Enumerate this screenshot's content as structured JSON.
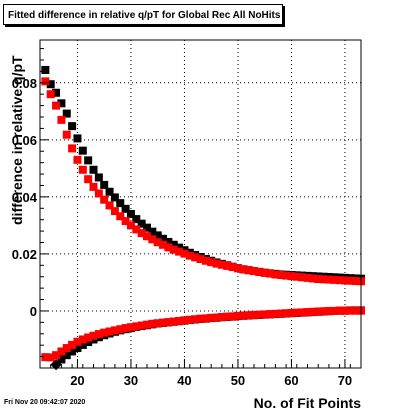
{
  "chart_title": "Fitted difference in relative q/pT for Global Rec All NoHits",
  "timestamp": "Fri Nov 20 09:42:07 2020",
  "chart_data": {
    "type": "scatter",
    "title": "Fitted difference in relative q/pT for Global Rec All NoHits",
    "xlabel": "No. of Fit Points",
    "ylabel": "difference in relative q/pT",
    "xlim": [
      13,
      73
    ],
    "ylim": [
      -0.02,
      0.095
    ],
    "x_ticks": [
      20,
      30,
      40,
      50,
      60,
      70
    ],
    "y_ticks": [
      0,
      0.02,
      0.04,
      0.06,
      0.08
    ],
    "y_tick_labels": [
      "0",
      "0.02",
      "0.04",
      "0.06",
      "0.08"
    ],
    "grid": true,
    "series": [
      {
        "color": "#000000",
        "x": [
          14,
          15,
          16,
          17,
          18,
          19,
          20,
          21,
          22,
          23,
          24,
          25,
          26,
          27,
          28,
          29,
          30,
          31,
          32,
          33,
          34,
          35,
          36,
          37,
          38,
          39,
          40,
          41,
          42,
          43,
          44,
          45,
          46,
          47,
          48,
          49,
          50,
          51,
          52,
          53,
          54,
          55,
          56,
          57,
          58,
          59,
          60,
          61,
          62,
          63,
          64,
          65,
          66,
          67,
          68,
          69,
          70,
          71,
          72,
          73
        ],
        "y": [
          0.0845,
          0.0795,
          0.0765,
          0.0728,
          0.0692,
          0.0648,
          0.0605,
          0.0562,
          0.0528,
          0.0495,
          0.0468,
          0.0442,
          0.0418,
          0.0398,
          0.0378,
          0.0358,
          0.034,
          0.0322,
          0.0306,
          0.0292,
          0.0278,
          0.0265,
          0.0253,
          0.0242,
          0.0232,
          0.0222,
          0.0213,
          0.0204,
          0.0196,
          0.0189,
          0.0182,
          0.0176,
          0.017,
          0.0165,
          0.016,
          0.0155,
          0.015,
          0.0146,
          0.0143,
          0.014,
          0.0137,
          0.0134,
          0.0132,
          0.013,
          0.0128,
          0.0127,
          0.0126,
          0.0125,
          0.0124,
          0.0123,
          0.0122,
          0.0121,
          0.012,
          0.0119,
          0.0118,
          0.0117,
          0.0116,
          0.0115,
          0.0114,
          0.0113
        ]
      },
      {
        "color": "#ff0000",
        "x": [
          14,
          15,
          16,
          17,
          18,
          19,
          20,
          21,
          22,
          23,
          24,
          25,
          26,
          27,
          28,
          29,
          30,
          31,
          32,
          33,
          34,
          35,
          36,
          37,
          38,
          39,
          40,
          41,
          42,
          43,
          44,
          45,
          46,
          47,
          48,
          49,
          50,
          51,
          52,
          53,
          54,
          55,
          56,
          57,
          58,
          59,
          60,
          61,
          62,
          63,
          64,
          65,
          66,
          67,
          68,
          69,
          70,
          71,
          72,
          73
        ],
        "y": [
          0.0805,
          0.076,
          0.072,
          0.067,
          0.0618,
          0.057,
          0.053,
          0.0495,
          0.0462,
          0.0435,
          0.0412,
          0.039,
          0.037,
          0.035,
          0.0332,
          0.0315,
          0.03,
          0.0286,
          0.0273,
          0.0262,
          0.0251,
          0.0241,
          0.0232,
          0.0223,
          0.0215,
          0.0208,
          0.0201,
          0.0194,
          0.0188,
          0.0182,
          0.0176,
          0.0171,
          0.0166,
          0.0162,
          0.0158,
          0.0154,
          0.015,
          0.0146,
          0.0143,
          0.014,
          0.0137,
          0.0134,
          0.0131,
          0.0128,
          0.0126,
          0.0124,
          0.0122,
          0.012,
          0.0118,
          0.0116,
          0.0114,
          0.0112,
          0.0111,
          0.011,
          0.0109,
          0.0108,
          0.0107,
          0.0106,
          0.0105,
          0.0104
        ]
      },
      {
        "color": "#000000",
        "x": [
          16,
          17,
          18,
          19,
          20,
          21,
          22,
          23,
          24,
          25,
          26,
          27,
          28,
          29,
          30,
          31,
          32,
          33,
          34,
          35,
          36,
          37,
          38,
          39,
          40,
          41,
          42,
          43,
          44,
          45,
          46,
          47,
          48,
          49,
          50,
          51,
          52,
          53,
          54,
          55,
          56,
          57,
          58,
          59,
          60,
          61,
          62,
          63,
          64,
          65,
          66,
          67,
          68,
          69,
          70,
          71,
          72,
          73
        ],
        "y": [
          -0.0188,
          -0.017,
          -0.0155,
          -0.0142,
          -0.013,
          -0.0119,
          -0.0109,
          -0.01,
          -0.0092,
          -0.0085,
          -0.0079,
          -0.0073,
          -0.0068,
          -0.0064,
          -0.006,
          -0.0056,
          -0.0053,
          -0.005,
          -0.0047,
          -0.0044,
          -0.0042,
          -0.004,
          -0.0038,
          -0.0036,
          -0.0034,
          -0.0032,
          -0.003,
          -0.0028,
          -0.0027,
          -0.0025,
          -0.0024,
          -0.0022,
          -0.0021,
          -0.002,
          -0.0018,
          -0.0017,
          -0.0016,
          -0.0015,
          -0.0014,
          -0.0013,
          -0.0012,
          -0.0011,
          -0.001,
          -0.0009,
          -0.0008,
          -0.0007,
          -0.0006,
          -0.0005,
          -0.0004,
          -0.0003,
          -0.0002,
          -0.0001,
          0.0,
          0.0001,
          0.0001,
          0.0002,
          0.0002,
          0.0002
        ]
      },
      {
        "color": "#ff0000",
        "x": [
          14,
          15,
          16,
          17,
          18,
          19,
          20,
          21,
          22,
          23,
          24,
          25,
          26,
          27,
          28,
          29,
          30,
          31,
          32,
          33,
          34,
          35,
          36,
          37,
          38,
          39,
          40,
          41,
          42,
          43,
          44,
          45,
          46,
          47,
          48,
          49,
          50,
          51,
          52,
          53,
          54,
          55,
          56,
          57,
          58,
          59,
          60,
          61,
          62,
          63,
          64,
          65,
          66,
          67,
          68,
          69,
          70,
          71,
          72,
          73
        ],
        "y": [
          -0.0162,
          -0.0163,
          -0.0155,
          -0.0142,
          -0.013,
          -0.0119,
          -0.0108,
          -0.01,
          -0.0093,
          -0.0087,
          -0.0081,
          -0.0076,
          -0.0072,
          -0.0068,
          -0.0064,
          -0.006,
          -0.0057,
          -0.0054,
          -0.0051,
          -0.0048,
          -0.0045,
          -0.0043,
          -0.0041,
          -0.0039,
          -0.0037,
          -0.0035,
          -0.0033,
          -0.0031,
          -0.0029,
          -0.0027,
          -0.0026,
          -0.0024,
          -0.0023,
          -0.0021,
          -0.002,
          -0.0019,
          -0.0017,
          -0.0016,
          -0.0015,
          -0.0014,
          -0.0013,
          -0.0012,
          -0.0011,
          -0.001,
          -0.0009,
          -0.0008,
          -0.0007,
          -0.0006,
          -0.0005,
          -0.0004,
          -0.0003,
          -0.0002,
          -0.0001,
          0.0,
          0.0,
          0.0001,
          0.0001,
          0.0001,
          0.0001,
          0.0001
        ]
      }
    ]
  }
}
